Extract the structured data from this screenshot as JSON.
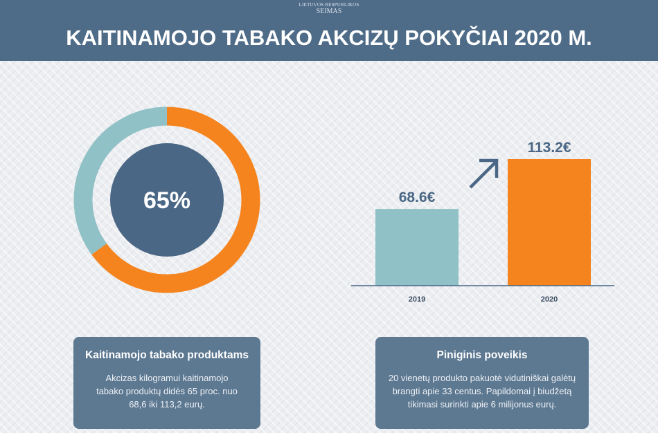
{
  "header": {
    "logo_line1": "LIETUVOS RESPUBLIKOS",
    "logo_line2": "SEIMAS",
    "title": "KAITINAMOJO TABAKO AKCIZŲ POKYČIAI 2020 M."
  },
  "chart_data": [
    {
      "type": "pie",
      "variant": "donut",
      "center_label": "65%",
      "values": [
        65,
        35
      ],
      "colors": [
        "#f5841f",
        "#8fc1c6"
      ],
      "center_color": "#4a6785"
    },
    {
      "type": "bar",
      "categories": [
        "2019",
        "2020"
      ],
      "values": [
        68.6,
        113.2
      ],
      "data_labels": [
        "68.6€",
        "113.2€"
      ],
      "colors": [
        "#8fc1c6",
        "#f5841f"
      ],
      "ylim": [
        0,
        113.2
      ],
      "annotation": "arrow-up-right-icon"
    }
  ],
  "cards": [
    {
      "title": "Kaitinamojo tabako produktams",
      "text": "Akcizas kilogramui kaitinamojo tabako produktų didės 65 proc. nuo 68,6 iki 113,2 eurų."
    },
    {
      "title": "Piniginis poveikis",
      "text": "20 vienetų produkto pakuotė vidutiniškai galėtų brangti apie 33 centus. Papildomai į biudžetą tikimasi surinkti apie 6 milijonus eurų."
    }
  ]
}
